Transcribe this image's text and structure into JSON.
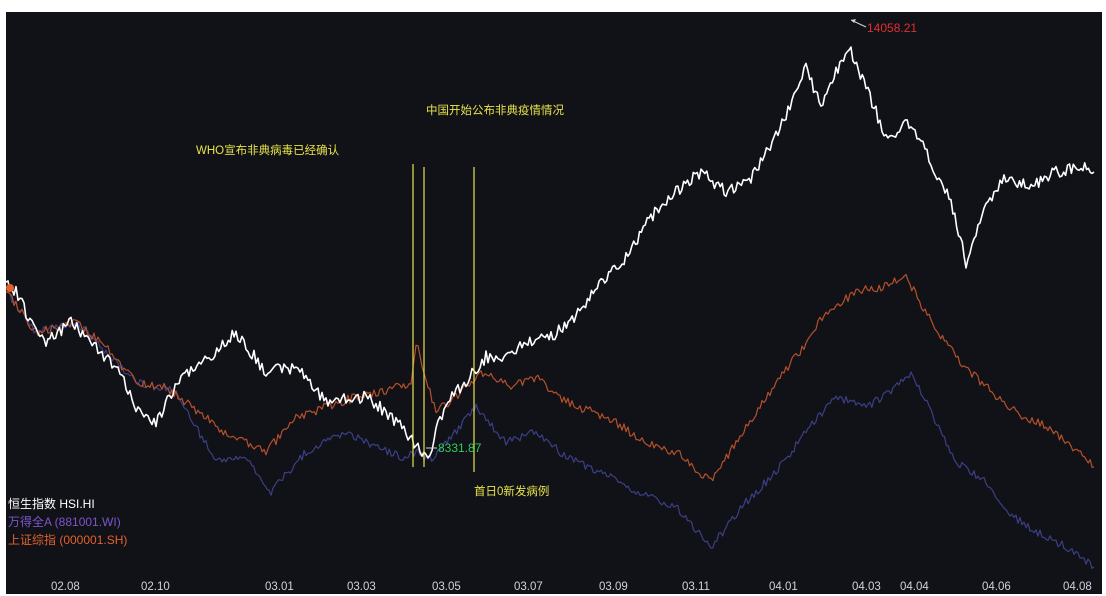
{
  "chart_data": {
    "type": "line",
    "colors": {
      "background": "#111217",
      "hsi": "#ffffff",
      "wind_a": "#3b3f86",
      "sh_comp": "#b5502b",
      "annotation": "#e7e34a",
      "max_label": "#e02f2f",
      "min_label": "#2ecc5a",
      "tick": "#cfd3da"
    },
    "x_ticks": [
      "02.08",
      "02.10",
      "03.01",
      "03.03",
      "03.05",
      "03.07",
      "03.09",
      "03.11",
      "04.01",
      "04.03",
      "04.04",
      "04.06",
      "04.08"
    ],
    "series": [
      {
        "name": "恒生指数 HSI.HI",
        "key": "hsi",
        "anchors": [
          [
            0,
            270
          ],
          [
            10,
            280
          ],
          [
            20,
            300
          ],
          [
            40,
            330
          ],
          [
            65,
            310
          ],
          [
            90,
            335
          ],
          [
            110,
            355
          ],
          [
            130,
            395
          ],
          [
            150,
            410
          ],
          [
            175,
            365
          ],
          [
            205,
            345
          ],
          [
            230,
            320
          ],
          [
            260,
            360
          ],
          [
            290,
            355
          ],
          [
            320,
            390
          ],
          [
            360,
            385
          ],
          [
            380,
            400
          ],
          [
            400,
            420
          ],
          [
            414,
            440
          ],
          [
            422,
            445
          ],
          [
            440,
            390
          ],
          [
            460,
            370
          ],
          [
            480,
            345
          ],
          [
            500,
            345
          ],
          [
            520,
            330
          ],
          [
            545,
            325
          ],
          [
            570,
            305
          ],
          [
            595,
            270
          ],
          [
            620,
            245
          ],
          [
            645,
            205
          ],
          [
            670,
            180
          ],
          [
            695,
            160
          ],
          [
            720,
            180
          ],
          [
            745,
            165
          ],
          [
            770,
            125
          ],
          [
            790,
            80
          ],
          [
            800,
            55
          ],
          [
            815,
            95
          ],
          [
            830,
            60
          ],
          [
            845,
            40
          ],
          [
            860,
            75
          ],
          [
            880,
            125
          ],
          [
            905,
            110
          ],
          [
            925,
            150
          ],
          [
            945,
            190
          ],
          [
            960,
            250
          ],
          [
            980,
            195
          ],
          [
            1000,
            165
          ],
          [
            1025,
            175
          ],
          [
            1050,
            160
          ],
          [
            1075,
            155
          ],
          [
            1088,
            160
          ]
        ]
      },
      {
        "name": "万得全A (881001.WI)",
        "key": "wind_a",
        "anchors": [
          [
            0,
            280
          ],
          [
            30,
            320
          ],
          [
            70,
            310
          ],
          [
            100,
            340
          ],
          [
            130,
            370
          ],
          [
            170,
            380
          ],
          [
            210,
            450
          ],
          [
            240,
            445
          ],
          [
            265,
            480
          ],
          [
            300,
            440
          ],
          [
            340,
            420
          ],
          [
            360,
            430
          ],
          [
            395,
            445
          ],
          [
            414,
            440
          ],
          [
            422,
            450
          ],
          [
            445,
            425
          ],
          [
            470,
            395
          ],
          [
            500,
            430
          ],
          [
            530,
            420
          ],
          [
            560,
            445
          ],
          [
            595,
            460
          ],
          [
            630,
            480
          ],
          [
            670,
            495
          ],
          [
            705,
            535
          ],
          [
            740,
            490
          ],
          [
            770,
            460
          ],
          [
            800,
            420
          ],
          [
            830,
            385
          ],
          [
            860,
            395
          ],
          [
            885,
            380
          ],
          [
            905,
            360
          ],
          [
            925,
            400
          ],
          [
            950,
            450
          ],
          [
            980,
            470
          ],
          [
            1000,
            500
          ],
          [
            1030,
            520
          ],
          [
            1060,
            535
          ],
          [
            1088,
            555
          ]
        ]
      },
      {
        "name": "上证综指 (000001.SH)",
        "key": "sh_comp",
        "anchors": [
          [
            0,
            280
          ],
          [
            30,
            320
          ],
          [
            70,
            310
          ],
          [
            100,
            335
          ],
          [
            130,
            370
          ],
          [
            160,
            375
          ],
          [
            200,
            405
          ],
          [
            225,
            425
          ],
          [
            260,
            440
          ],
          [
            290,
            405
          ],
          [
            320,
            395
          ],
          [
            350,
            385
          ],
          [
            390,
            375
          ],
          [
            405,
            370
          ],
          [
            410,
            330
          ],
          [
            418,
            360
          ],
          [
            430,
            400
          ],
          [
            450,
            385
          ],
          [
            475,
            360
          ],
          [
            505,
            375
          ],
          [
            530,
            365
          ],
          [
            560,
            390
          ],
          [
            600,
            405
          ],
          [
            640,
            430
          ],
          [
            670,
            440
          ],
          [
            705,
            470
          ],
          [
            730,
            430
          ],
          [
            760,
            385
          ],
          [
            790,
            345
          ],
          [
            820,
            300
          ],
          [
            850,
            280
          ],
          [
            875,
            275
          ],
          [
            900,
            265
          ],
          [
            925,
            310
          ],
          [
            950,
            345
          ],
          [
            980,
            375
          ],
          [
            1010,
            400
          ],
          [
            1040,
            415
          ],
          [
            1065,
            435
          ],
          [
            1088,
            455
          ]
        ]
      }
    ],
    "annotations": [
      {
        "text": "WHO宣布非典病毒已经确认"
      },
      {
        "text": "中国开始公布非典疫情情况"
      },
      {
        "text": "首日0新发病例"
      }
    ],
    "max_label": "14058.21",
    "min_label": "8331.87",
    "legend": "bottom-left"
  }
}
